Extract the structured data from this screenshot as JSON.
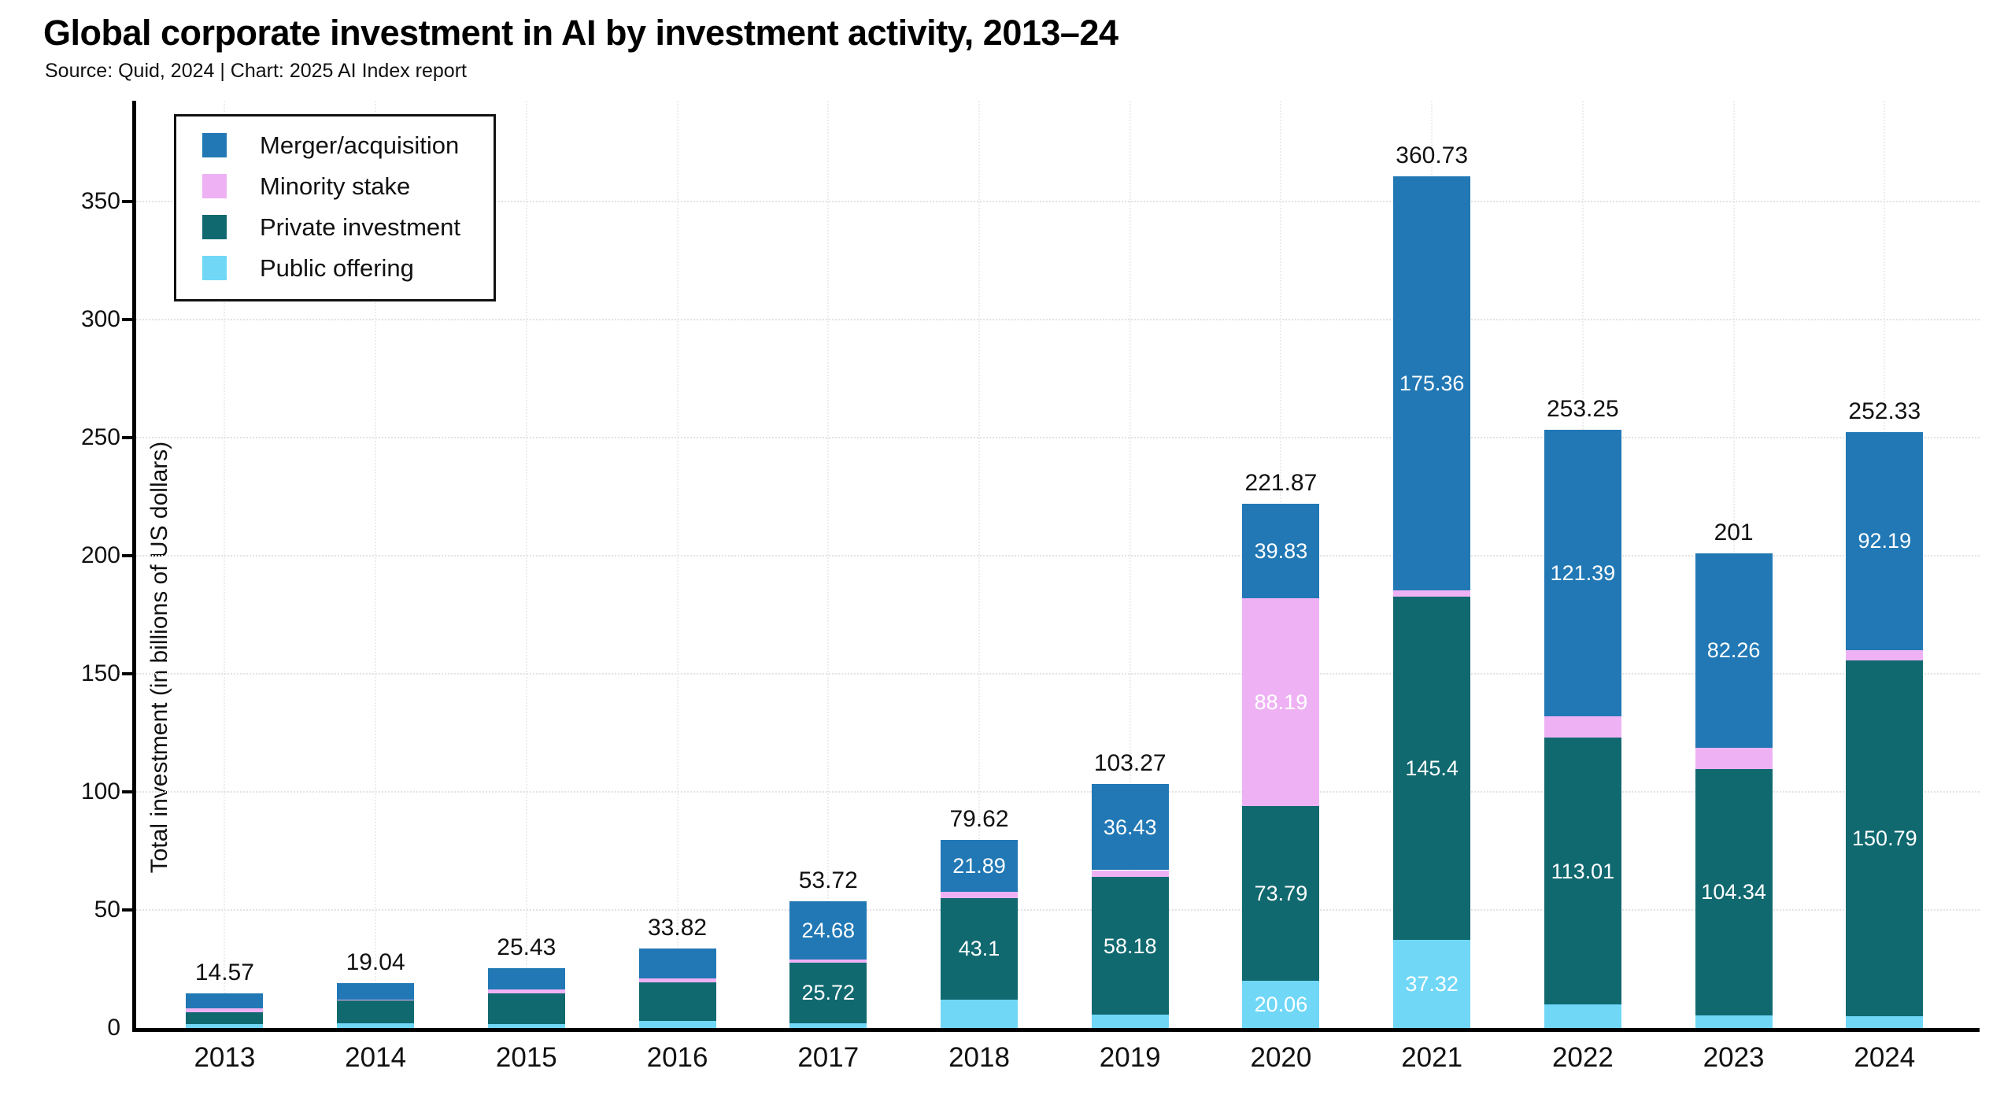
{
  "header": {
    "title": "Global corporate investment in AI by investment activity, 2013–24",
    "source_line": "Source: Quid, 2024 | Chart: 2025 AI Index report"
  },
  "colors": {
    "merger_acquisition": "#2178b5",
    "minority_stake": "#eeb2f4",
    "private_investment": "#116970",
    "public_offering": "#70d7f7",
    "axis": "#000000",
    "gridline": "#e5e5e5",
    "total_label": "#111111",
    "segment_label": "#ffffff"
  },
  "chart_data": {
    "type": "bar",
    "stacked": true,
    "title": "Global corporate investment in AI by investment activity, 2013–24",
    "xlabel": "",
    "ylabel": "Total investment (in billions of US dollars)",
    "ylim": [
      0,
      392
    ],
    "yticks": [
      0,
      50,
      100,
      150,
      200,
      250,
      300,
      350
    ],
    "grid": true,
    "legend_position": "top-left",
    "legend_order": [
      "Merger/acquisition",
      "Minority stake",
      "Private investment",
      "Public offering"
    ],
    "categories": [
      "2013",
      "2014",
      "2015",
      "2016",
      "2017",
      "2018",
      "2019",
      "2020",
      "2021",
      "2022",
      "2023",
      "2024"
    ],
    "series": [
      {
        "name": "Public offering",
        "color": "#70d7f7",
        "values": [
          1.67,
          2.1,
          1.65,
          3.0,
          2.0,
          12.0,
          5.7,
          20.06,
          37.32,
          9.9,
          5.4,
          4.85
        ],
        "labels": [
          null,
          null,
          null,
          null,
          null,
          null,
          null,
          "20.06",
          "37.32",
          null,
          null,
          null
        ]
      },
      {
        "name": "Private investment",
        "color": "#116970",
        "values": [
          5.1,
          9.85,
          13.0,
          16.4,
          25.72,
          43.1,
          58.18,
          73.79,
          145.4,
          113.01,
          104.34,
          150.79
        ],
        "labels": [
          null,
          null,
          null,
          null,
          "25.72",
          "43.1",
          "58.18",
          "73.79",
          "145.4",
          "113.01",
          "104.34",
          "150.79"
        ]
      },
      {
        "name": "Minority stake",
        "color": "#eeb2f4",
        "values": [
          1.7,
          0.1,
          1.6,
          1.6,
          1.32,
          2.63,
          2.96,
          88.19,
          2.65,
          8.95,
          9.0,
          4.5
        ],
        "labels": [
          null,
          null,
          null,
          null,
          null,
          null,
          null,
          "88.19",
          null,
          null,
          null,
          null
        ]
      },
      {
        "name": "Merger/acquisition",
        "color": "#2178b5",
        "values": [
          6.1,
          6.99,
          9.18,
          12.82,
          24.68,
          21.89,
          36.43,
          39.83,
          175.36,
          121.39,
          82.26,
          92.19
        ],
        "labels": [
          null,
          null,
          null,
          null,
          "24.68",
          "21.89",
          "36.43",
          "39.83",
          "175.36",
          "121.39",
          "82.26",
          "92.19"
        ]
      }
    ],
    "totals": [
      "14.57",
      "19.04",
      "25.43",
      "33.82",
      "53.72",
      "79.62",
      "103.27",
      "221.87",
      "360.73",
      "253.25",
      "201",
      "252.33"
    ]
  }
}
